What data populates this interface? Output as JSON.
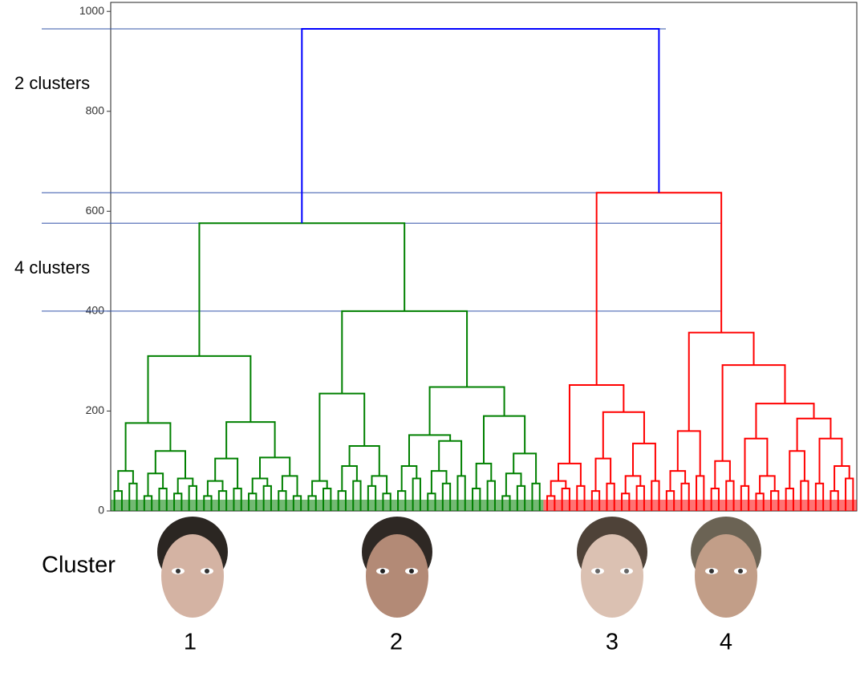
{
  "chart_data": {
    "type": "dendrogram",
    "ylim": [
      0,
      1018
    ],
    "yticks": [
      0,
      200,
      400,
      600,
      800,
      1000
    ],
    "reference_lines": [
      965,
      637,
      576,
      400
    ],
    "reference_color": "#3355aa",
    "annotations": [
      "2 clusters",
      "4 clusters"
    ],
    "row_label": "Cluster",
    "cluster_labels": [
      "1",
      "2",
      "3",
      "4"
    ],
    "tree": {
      "height": 965,
      "color": "#0000ff",
      "children": [
        {
          "height": 576,
          "color": "#008000",
          "children": [
            {
              "height": 310,
              "children": [
                {
                  "height": 176,
                  "children": [
                    {
                      "height": 80,
                      "children": [
                        40,
                        55
                      ]
                    },
                    {
                      "height": 120,
                      "children": [
                        {
                          "height": 75,
                          "children": [
                            30,
                            45
                          ]
                        },
                        {
                          "height": 65,
                          "children": [
                            35,
                            50
                          ]
                        }
                      ]
                    }
                  ]
                },
                {
                  "height": 178,
                  "children": [
                    {
                      "height": 105,
                      "children": [
                        {
                          "height": 60,
                          "children": [
                            30,
                            40
                          ]
                        },
                        45
                      ]
                    },
                    {
                      "height": 107,
                      "children": [
                        {
                          "height": 65,
                          "children": [
                            35,
                            50
                          ]
                        },
                        {
                          "height": 70,
                          "children": [
                            40,
                            30
                          ]
                        }
                      ]
                    }
                  ]
                }
              ]
            },
            {
              "height": 400,
              "children": [
                {
                  "height": 235,
                  "children": [
                    {
                      "height": 60,
                      "children": [
                        30,
                        45
                      ]
                    },
                    {
                      "height": 130,
                      "children": [
                        {
                          "height": 90,
                          "children": [
                            40,
                            60
                          ]
                        },
                        {
                          "height": 70,
                          "children": [
                            50,
                            35
                          ]
                        }
                      ]
                    }
                  ]
                },
                {
                  "height": 248,
                  "children": [
                    {
                      "height": 152,
                      "children": [
                        {
                          "height": 90,
                          "children": [
                            40,
                            65
                          ]
                        },
                        {
                          "height": 140,
                          "children": [
                            {
                              "height": 80,
                              "children": [
                                35,
                                55
                              ]
                            },
                            70
                          ]
                        }
                      ]
                    },
                    {
                      "height": 190,
                      "children": [
                        {
                          "height": 95,
                          "children": [
                            45,
                            60
                          ]
                        },
                        {
                          "height": 115,
                          "children": [
                            {
                              "height": 75,
                              "children": [
                                30,
                                50
                              ]
                            },
                            55
                          ]
                        }
                      ]
                    }
                  ]
                }
              ]
            }
          ]
        },
        {
          "height": 637,
          "color": "#ff0000",
          "children": [
            {
              "height": 252,
              "children": [
                {
                  "height": 95,
                  "children": [
                    {
                      "height": 60,
                      "children": [
                        30,
                        45
                      ]
                    },
                    50
                  ]
                },
                {
                  "height": 198,
                  "children": [
                    {
                      "height": 105,
                      "children": [
                        40,
                        55
                      ]
                    },
                    {
                      "height": 135,
                      "children": [
                        {
                          "height": 70,
                          "children": [
                            35,
                            50
                          ]
                        },
                        60
                      ]
                    }
                  ]
                }
              ]
            },
            {
              "height": 357,
              "children": [
                {
                  "height": 160,
                  "children": [
                    {
                      "height": 80,
                      "children": [
                        40,
                        55
                      ]
                    },
                    70
                  ]
                },
                {
                  "height": 292,
                  "children": [
                    {
                      "height": 100,
                      "children": [
                        45,
                        60
                      ]
                    },
                    {
                      "height": 215,
                      "children": [
                        {
                          "height": 145,
                          "children": [
                            50,
                            {
                              "height": 70,
                              "children": [
                                35,
                                40
                              ]
                            }
                          ]
                        },
                        {
                          "height": 185,
                          "children": [
                            {
                              "height": 120,
                              "children": [
                                45,
                                60
                              ]
                            },
                            {
                              "height": 145,
                              "children": [
                                55,
                                {
                                  "height": 90,
                                  "children": [
                                    40,
                                    65
                                  ]
                                }
                              ]
                            }
                          ]
                        }
                      ]
                    }
                  ]
                }
              ]
            }
          ]
        }
      ]
    }
  }
}
